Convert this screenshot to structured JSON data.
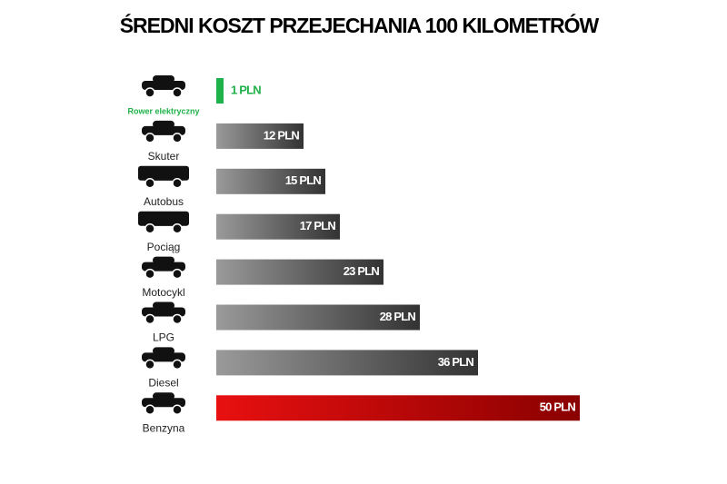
{
  "chart_data": {
    "type": "hbar",
    "title": "ŚREDNI KOSZT PRZEJECHANIA 100 KILOMETRÓW",
    "categories": [
      "Rower elektryczny",
      "Skuter",
      "Autobus",
      "Pociąg",
      "Motocykl",
      "LPG",
      "Diesel",
      "Benzyna"
    ],
    "values": [
      1,
      12,
      15,
      17,
      23,
      28,
      36,
      50
    ],
    "value_labels": [
      "1 PLN",
      "12 PLN",
      "15 PLN",
      "17 PLN",
      "23 PLN",
      "28 PLN",
      "36 PLN",
      "50 PLN"
    ],
    "colors": [
      [
        "#1fb24a",
        "#1fb24a"
      ],
      [
        "#9a9a9a",
        "#333333"
      ],
      [
        "#9a9a9a",
        "#333333"
      ],
      [
        "#9a9a9a",
        "#333333"
      ],
      [
        "#9a9a9a",
        "#333333"
      ],
      [
        "#9a9a9a",
        "#333333"
      ],
      [
        "#9a9a9a",
        "#333333"
      ],
      [
        "#e81010",
        "#8a0000"
      ]
    ]
  }
}
